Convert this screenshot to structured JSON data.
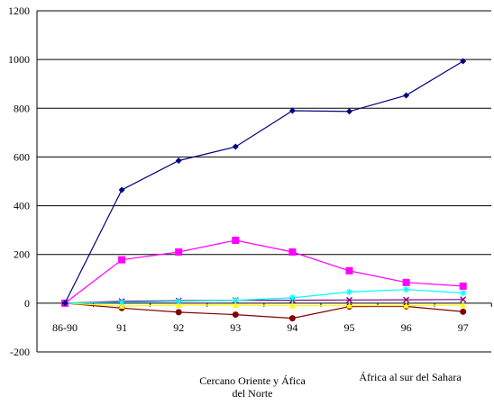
{
  "chart_data": {
    "type": "line",
    "categories": [
      "86-90",
      "91",
      "92",
      "93",
      "94",
      "95",
      "96",
      "97"
    ],
    "ylim": [
      -200,
      1200
    ],
    "yticks": [
      -200,
      0,
      200,
      400,
      600,
      800,
      1000,
      1200
    ],
    "grid": "horizontal",
    "series": [
      {
        "name": "",
        "color": "#000080",
        "marker": "diamond",
        "values": [
          0,
          465,
          585,
          642,
          790,
          787,
          853,
          993
        ]
      },
      {
        "name": "",
        "color": "#ff00ff",
        "marker": "square",
        "values": [
          0,
          178,
          210,
          258,
          210,
          133,
          85,
          70
        ]
      },
      {
        "name": "",
        "color": "#00ffff",
        "marker": "star",
        "values": [
          0,
          4,
          8,
          12,
          22,
          46,
          56,
          42
        ]
      },
      {
        "name": "",
        "color": "#800080",
        "marker": "x",
        "values": [
          0,
          8,
          10,
          12,
          12,
          13,
          14,
          15
        ]
      },
      {
        "name": "",
        "color": "#ffff00",
        "marker": "triangle",
        "values": [
          0,
          -12,
          -8,
          -8,
          -10,
          -10,
          -10,
          -8
        ]
      },
      {
        "name": "",
        "color": "#800000",
        "marker": "circle",
        "values": [
          0,
          -20,
          -37,
          -47,
          -62,
          -14,
          -13,
          -35
        ]
      }
    ],
    "legend": [
      "Cercano Oriente y Áfica del Norte",
      "África al sur del Sahara"
    ]
  }
}
